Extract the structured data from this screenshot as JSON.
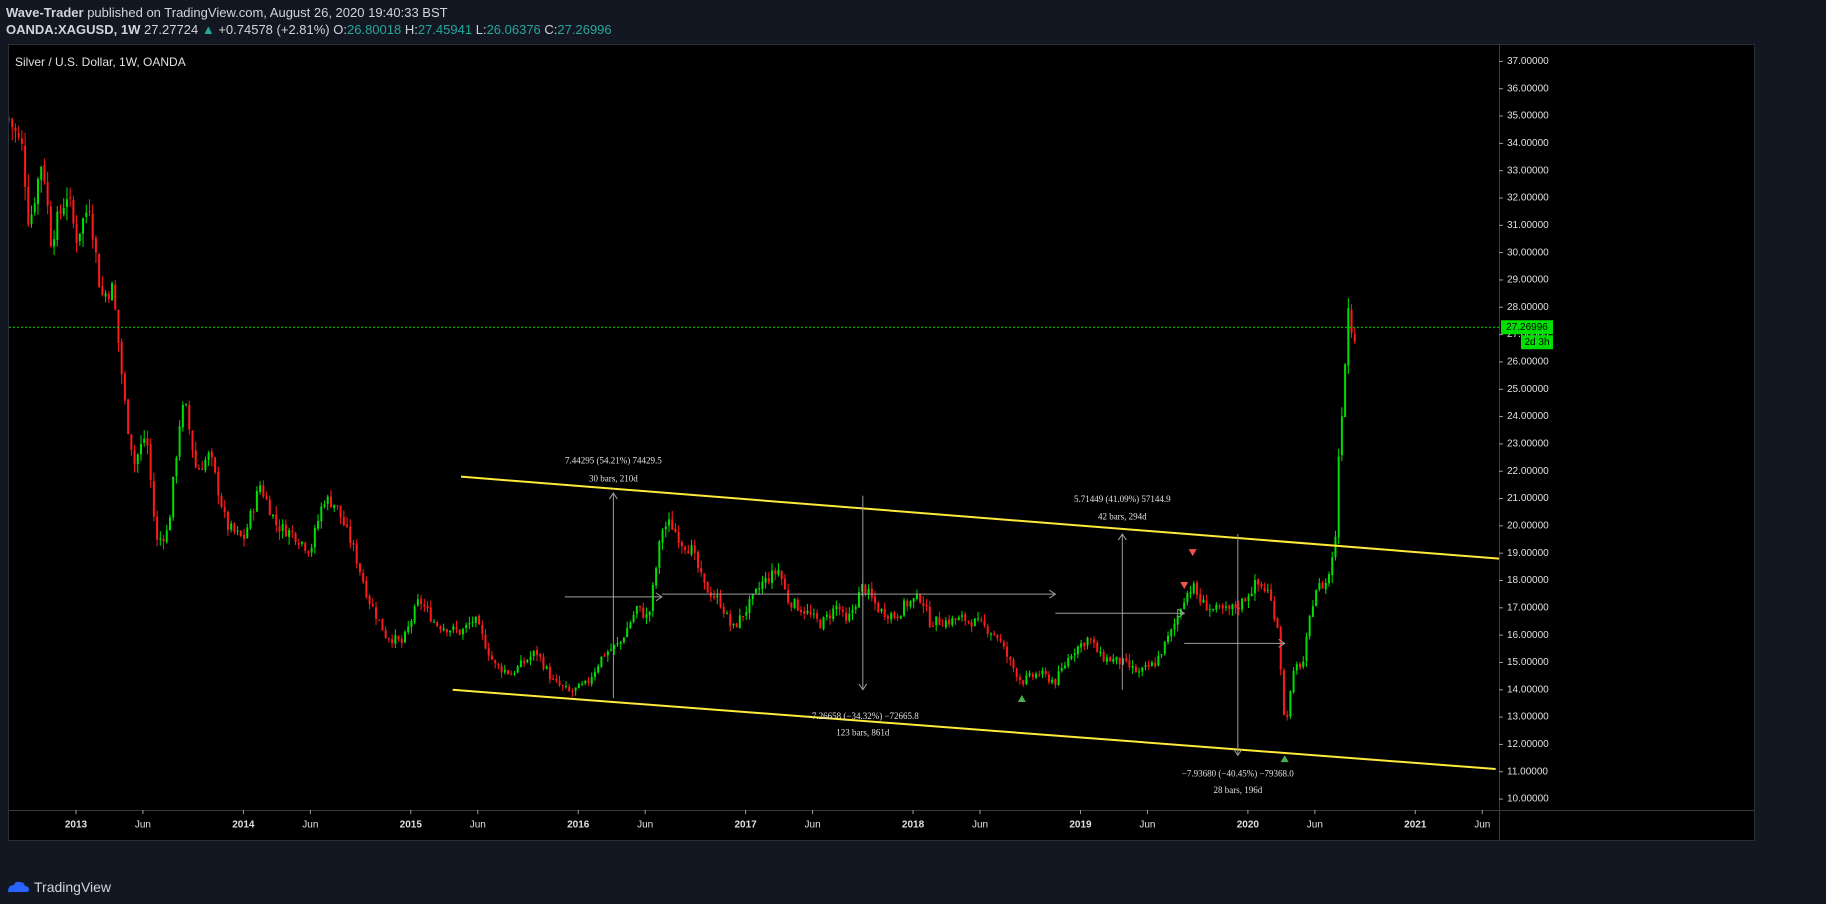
{
  "header": {
    "author": "Wave-Trader",
    "published_text": "published on TradingView.com, August 26, 2020 19:40:33 BST",
    "symbol": "OANDA:XAGUSD, 1W",
    "last": "27.27724",
    "change": "+0.74578 (+2.81%)",
    "o_label": "O:",
    "o_value": "26.80018",
    "h_label": "H:",
    "h_value": "27.45941",
    "l_label": "L:",
    "l_value": "26.06376",
    "c_label": "C:",
    "c_value": "27.26996"
  },
  "footer": {
    "brand": "TradingView"
  },
  "colors": {
    "up": "#00e000",
    "down": "#ff1a1a",
    "channel": "#ffeb3b",
    "price_line": "#00e000",
    "axis_text": "#e0e0e0"
  },
  "chart_data": {
    "type": "candlestick",
    "title": "Silver / U.S. Dollar, 1W, OANDA",
    "y_axis": {
      "position": "right",
      "range": [
        9.6,
        37.6
      ],
      "ticks": [
        "10.00000",
        "11.00000",
        "12.00000",
        "13.00000",
        "14.00000",
        "15.00000",
        "16.00000",
        "17.00000",
        "18.00000",
        "19.00000",
        "20.00000",
        "21.00000",
        "22.00000",
        "23.00000",
        "24.00000",
        "25.00000",
        "26.00000",
        "27.00000",
        "28.00000",
        "29.00000",
        "30.00000",
        "31.00000",
        "32.00000",
        "33.00000",
        "34.00000",
        "35.00000",
        "36.00000",
        "37.00000"
      ]
    },
    "x_axis": {
      "range": [
        2012.6,
        2021.5
      ],
      "ticks": [
        {
          "t": 2013.0,
          "label": "2013",
          "bold": true
        },
        {
          "t": 2013.4,
          "label": "Jun",
          "bold": false
        },
        {
          "t": 2014.0,
          "label": "2014",
          "bold": true
        },
        {
          "t": 2014.4,
          "label": "Jun",
          "bold": false
        },
        {
          "t": 2015.0,
          "label": "2015",
          "bold": true
        },
        {
          "t": 2015.4,
          "label": "Jun",
          "bold": false
        },
        {
          "t": 2016.0,
          "label": "2016",
          "bold": true
        },
        {
          "t": 2016.4,
          "label": "Jun",
          "bold": false
        },
        {
          "t": 2017.0,
          "label": "2017",
          "bold": true
        },
        {
          "t": 2017.4,
          "label": "Jun",
          "bold": false
        },
        {
          "t": 2018.0,
          "label": "2018",
          "bold": true
        },
        {
          "t": 2018.4,
          "label": "Jun",
          "bold": false
        },
        {
          "t": 2019.0,
          "label": "2019",
          "bold": true
        },
        {
          "t": 2019.4,
          "label": "Jun",
          "bold": false
        },
        {
          "t": 2020.0,
          "label": "2020",
          "bold": true
        },
        {
          "t": 2020.4,
          "label": "Jun",
          "bold": false
        },
        {
          "t": 2021.0,
          "label": "2021",
          "bold": true
        },
        {
          "t": 2021.4,
          "label": "Jun",
          "bold": false
        }
      ]
    },
    "price_anchors": [
      [
        2012.6,
        34.9
      ],
      [
        2012.68,
        33.8
      ],
      [
        2012.72,
        31.0
      ],
      [
        2012.8,
        33.5
      ],
      [
        2012.85,
        30.5
      ],
      [
        2012.95,
        32.2
      ],
      [
        2013.0,
        30.5
      ],
      [
        2013.08,
        31.8
      ],
      [
        2013.15,
        28.4
      ],
      [
        2013.22,
        28.7
      ],
      [
        2013.3,
        24.0
      ],
      [
        2013.35,
        22.3
      ],
      [
        2013.42,
        23.4
      ],
      [
        2013.48,
        19.4
      ],
      [
        2013.55,
        19.8
      ],
      [
        2013.62,
        23.8
      ],
      [
        2013.65,
        24.5
      ],
      [
        2013.72,
        22.0
      ],
      [
        2013.8,
        22.6
      ],
      [
        2013.9,
        20.0
      ],
      [
        2014.0,
        19.5
      ],
      [
        2014.1,
        21.5
      ],
      [
        2014.2,
        20.0
      ],
      [
        2014.3,
        19.7
      ],
      [
        2014.4,
        19.1
      ],
      [
        2014.48,
        21.0
      ],
      [
        2014.55,
        20.8
      ],
      [
        2014.65,
        19.3
      ],
      [
        2014.75,
        17.3
      ],
      [
        2014.85,
        16.0
      ],
      [
        2014.95,
        15.7
      ],
      [
        2015.05,
        17.3
      ],
      [
        2015.15,
        16.4
      ],
      [
        2015.3,
        16.1
      ],
      [
        2015.38,
        16.6
      ],
      [
        2015.5,
        14.9
      ],
      [
        2015.6,
        14.6
      ],
      [
        2015.75,
        15.4
      ],
      [
        2015.85,
        14.3
      ],
      [
        2015.95,
        13.9
      ],
      [
        2016.05,
        14.2
      ],
      [
        2016.15,
        15.3
      ],
      [
        2016.25,
        15.7
      ],
      [
        2016.35,
        17.0
      ],
      [
        2016.42,
        16.6
      ],
      [
        2016.5,
        19.9
      ],
      [
        2016.55,
        20.1
      ],
      [
        2016.62,
        19.4
      ],
      [
        2016.68,
        19.1
      ],
      [
        2016.75,
        17.8
      ],
      [
        2016.85,
        17.2
      ],
      [
        2016.92,
        16.2
      ],
      [
        2017.0,
        16.9
      ],
      [
        2017.1,
        17.9
      ],
      [
        2017.2,
        18.4
      ],
      [
        2017.25,
        17.3
      ],
      [
        2017.35,
        16.9
      ],
      [
        2017.45,
        16.4
      ],
      [
        2017.55,
        17.1
      ],
      [
        2017.6,
        16.4
      ],
      [
        2017.7,
        17.8
      ],
      [
        2017.8,
        16.9
      ],
      [
        2017.9,
        16.7
      ],
      [
        2017.95,
        17.1
      ],
      [
        2018.05,
        17.4
      ],
      [
        2018.1,
        16.5
      ],
      [
        2018.2,
        16.5
      ],
      [
        2018.3,
        16.6
      ],
      [
        2018.4,
        16.4
      ],
      [
        2018.5,
        16.0
      ],
      [
        2018.58,
        15.0
      ],
      [
        2018.65,
        14.3
      ],
      [
        2018.75,
        14.6
      ],
      [
        2018.85,
        14.3
      ],
      [
        2018.95,
        15.4
      ],
      [
        2019.05,
        15.9
      ],
      [
        2019.12,
        15.2
      ],
      [
        2019.25,
        15.0
      ],
      [
        2019.35,
        14.6
      ],
      [
        2019.45,
        15.0
      ],
      [
        2019.55,
        16.2
      ],
      [
        2019.62,
        17.4
      ],
      [
        2019.67,
        17.8
      ],
      [
        2019.72,
        17.2
      ],
      [
        2019.8,
        16.9
      ],
      [
        2019.88,
        16.9
      ],
      [
        2019.95,
        17.1
      ],
      [
        2020.05,
        17.9
      ],
      [
        2020.12,
        17.6
      ],
      [
        2020.18,
        16.3
      ],
      [
        2020.2,
        14.5
      ],
      [
        2020.22,
        12.6
      ],
      [
        2020.28,
        14.8
      ],
      [
        2020.33,
        15.0
      ],
      [
        2020.4,
        17.7
      ],
      [
        2020.47,
        17.9
      ],
      [
        2020.52,
        19.2
      ],
      [
        2020.54,
        22.4
      ],
      [
        2020.56,
        24.1
      ],
      [
        2020.58,
        26.0
      ],
      [
        2020.6,
        28.0
      ],
      [
        2020.63,
        26.9
      ],
      [
        2020.65,
        27.27
      ]
    ],
    "channel_lines": [
      {
        "x1": 2015.3,
        "y1": 21.8,
        "x2": 2021.5,
        "y2": 18.8
      },
      {
        "x1": 2015.25,
        "y1": 14.0,
        "x2": 2021.48,
        "y2": 11.1
      }
    ],
    "current_price_line": {
      "value": 27.26996,
      "label": "27.26996",
      "countdown": "2d 3h"
    },
    "measurements": [
      {
        "x": 2016.21,
        "y_from": 13.7,
        "y_to": 21.2,
        "h_from": 2015.92,
        "h_to": 2016.5,
        "h_y": 17.4,
        "lines": [
          "7.44295 (54.21%) 74429.5",
          "30 bars, 210d"
        ],
        "label_x": 2016.21,
        "label_y": 22.35,
        "label_y2": 21.7
      },
      {
        "x": 2017.7,
        "y_from": 21.1,
        "y_to": 14.0,
        "h_from": 2016.5,
        "h_to": 2018.85,
        "h_y": 17.5,
        "lines": [
          "−7.26658 (−34.32%) −72665.8",
          "123 bars, 861d"
        ],
        "label_x": 2017.7,
        "label_y": 13.0,
        "label_y2": 12.4
      },
      {
        "x": 2019.25,
        "y_from": 14.0,
        "y_to": 19.7,
        "h_from": 2018.85,
        "h_to": 2019.62,
        "h_y": 16.8,
        "lines": [
          "5.71449 (41.09%) 57144.9",
          "42 bars, 294d"
        ],
        "label_x": 2019.25,
        "label_y": 20.95,
        "label_y2": 20.3
      },
      {
        "x": 2019.94,
        "y_from": 19.7,
        "y_to": 11.6,
        "h_from": 2019.62,
        "h_to": 2020.22,
        "h_y": 15.7,
        "lines": [
          "−7.93680 (−40.45%) −79368.0",
          "28 bars, 196d"
        ],
        "label_x": 2019.94,
        "label_y": 10.9,
        "label_y2": 10.3
      }
    ],
    "markers": [
      {
        "t": 2018.65,
        "v": 13.7,
        "dir": "up",
        "color": "#4caf50"
      },
      {
        "t": 2020.22,
        "v": 11.5,
        "dir": "up",
        "color": "#4caf50"
      },
      {
        "t": 2019.67,
        "v": 19.0,
        "dir": "down",
        "color": "#ef5350"
      },
      {
        "t": 2019.62,
        "v": 17.8,
        "dir": "down",
        "color": "#ef5350"
      }
    ]
  }
}
